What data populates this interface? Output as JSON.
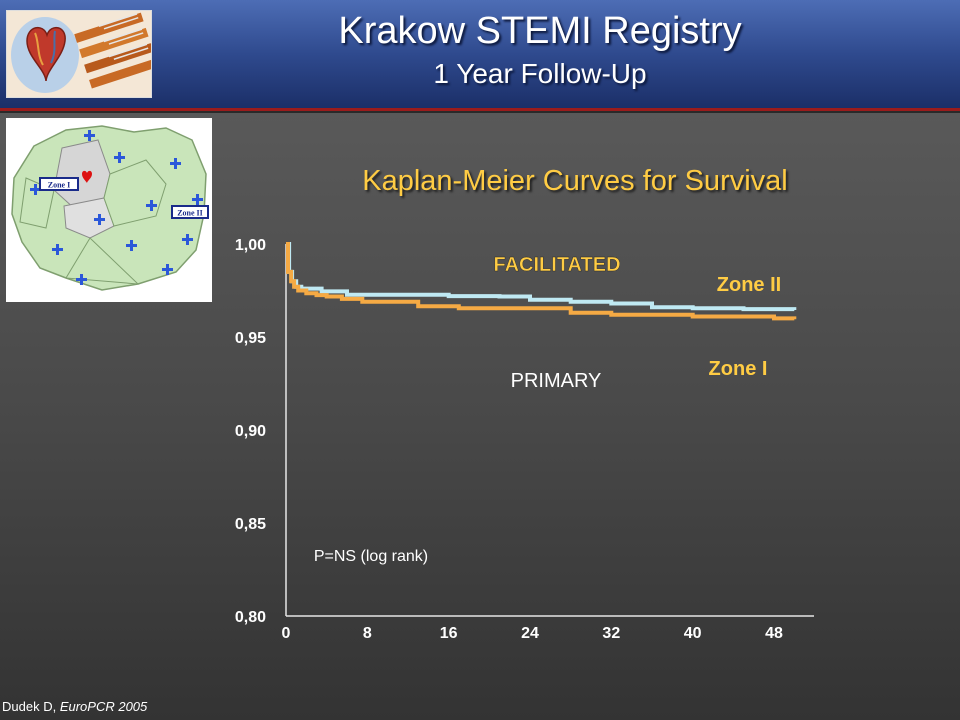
{
  "header": {
    "title": "Krakow STEMI Registry",
    "subtitle": "1 Year Follow-Up"
  },
  "map": {
    "zone1_label": "Zone I",
    "zone2_label": "Zone II"
  },
  "citation": {
    "author": "Dudek D,",
    "source": "EuroPCR 2005"
  },
  "colors": {
    "title_yellow": "#ffcc44",
    "zone1_curve": "#f5aa44",
    "zone2_curve": "#bfe9f3",
    "header_blue": "#2f4a8e",
    "header_red_line": "#9b1c1c"
  },
  "chart_data": {
    "type": "line",
    "title": "Kaplan-Meier Curves for Survival",
    "ylim": [
      0.8,
      1.0
    ],
    "xlim": [
      0,
      48
    ],
    "y_ticks": [
      "1,00",
      "0,95",
      "0,90",
      "0,85",
      "0,80"
    ],
    "y_tick_values": [
      1.0,
      0.95,
      0.9,
      0.85,
      0.8
    ],
    "x_ticks": [
      "0",
      "8",
      "16",
      "24",
      "32",
      "40",
      "48"
    ],
    "x_tick_values": [
      0,
      8,
      16,
      24,
      32,
      40,
      48
    ],
    "series": [
      {
        "name": "Zone II",
        "group": "FACILITATED",
        "color": "#bfe9f3",
        "x": [
          0,
          0.3,
          0.6,
          1.0,
          1.5,
          3.5,
          6.0,
          10.0,
          16.0,
          21.0,
          24.0,
          28.0,
          32.0,
          36.0,
          40.0,
          45.0,
          50.0
        ],
        "y": [
          1.0,
          0.985,
          0.98,
          0.977,
          0.976,
          0.9745,
          0.9727,
          0.9727,
          0.972,
          0.9718,
          0.97,
          0.969,
          0.968,
          0.966,
          0.9655,
          0.965,
          0.9645
        ]
      },
      {
        "name": "Zone I",
        "group": "PRIMARY",
        "color": "#f5aa44",
        "x": [
          0,
          0.2,
          0.5,
          0.8,
          1.2,
          2.0,
          3.0,
          4.0,
          5.5,
          7.5,
          13.0,
          17.0,
          28.0,
          32.0,
          40.0,
          48.0,
          50.0
        ],
        "y": [
          1.0,
          0.985,
          0.98,
          0.977,
          0.975,
          0.9735,
          0.9725,
          0.9718,
          0.9705,
          0.969,
          0.9665,
          0.9655,
          0.963,
          0.962,
          0.961,
          0.96,
          0.9595
        ]
      }
    ],
    "annotations": {
      "facilitated": "FACILITATED",
      "primary": "PRIMARY",
      "zone2": "Zone II",
      "zone1": "Zone I",
      "pvalue": "P=NS (log rank)"
    }
  }
}
